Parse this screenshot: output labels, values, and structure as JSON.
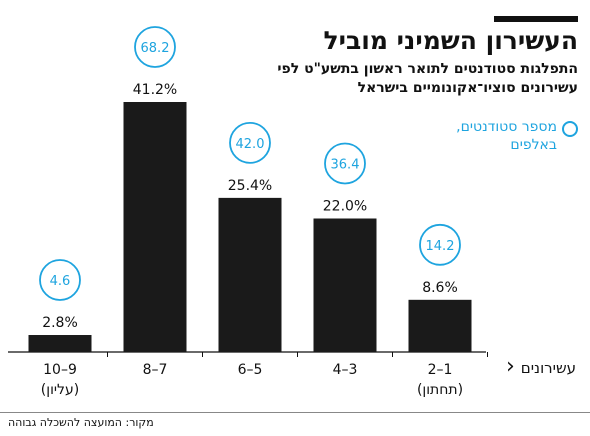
{
  "title": "העשירון השמיני מוביל",
  "subtitle": "התפלגות סטודנטים לתואר ראשון בתשע\"ט לפי עשירונים סוציו־אקונומיים בישראל",
  "legend": {
    "label": "מספר סטודנטים, באלפים"
  },
  "axis": {
    "title": "עשירונים",
    "chevron": "‹"
  },
  "source": "מקור: המועצה להשכלה גבוהה",
  "colors": {
    "bar": "#1a1a1a",
    "circle": "#1ea4df",
    "text": "#111111"
  },
  "chart_data": {
    "type": "bar",
    "categories": [
      {
        "label": "10–9",
        "sublabel": "(עליון)"
      },
      {
        "label": "8–7",
        "sublabel": ""
      },
      {
        "label": "6–5",
        "sublabel": ""
      },
      {
        "label": "4–3",
        "sublabel": ""
      },
      {
        "label": "2–1",
        "sublabel": "(תחתון)"
      }
    ],
    "values": [
      2.8,
      41.2,
      25.4,
      22.0,
      8.6
    ],
    "value_labels": [
      "2.8%",
      "41.2%",
      "25.4%",
      "22.0%",
      "8.6%"
    ],
    "students_thousands": [
      4.6,
      68.2,
      42.0,
      36.4,
      14.2
    ],
    "students_labels": [
      "4.6",
      "68.2",
      "42.0",
      "36.4",
      "14.2"
    ],
    "ylim": [
      0,
      41.2
    ]
  }
}
